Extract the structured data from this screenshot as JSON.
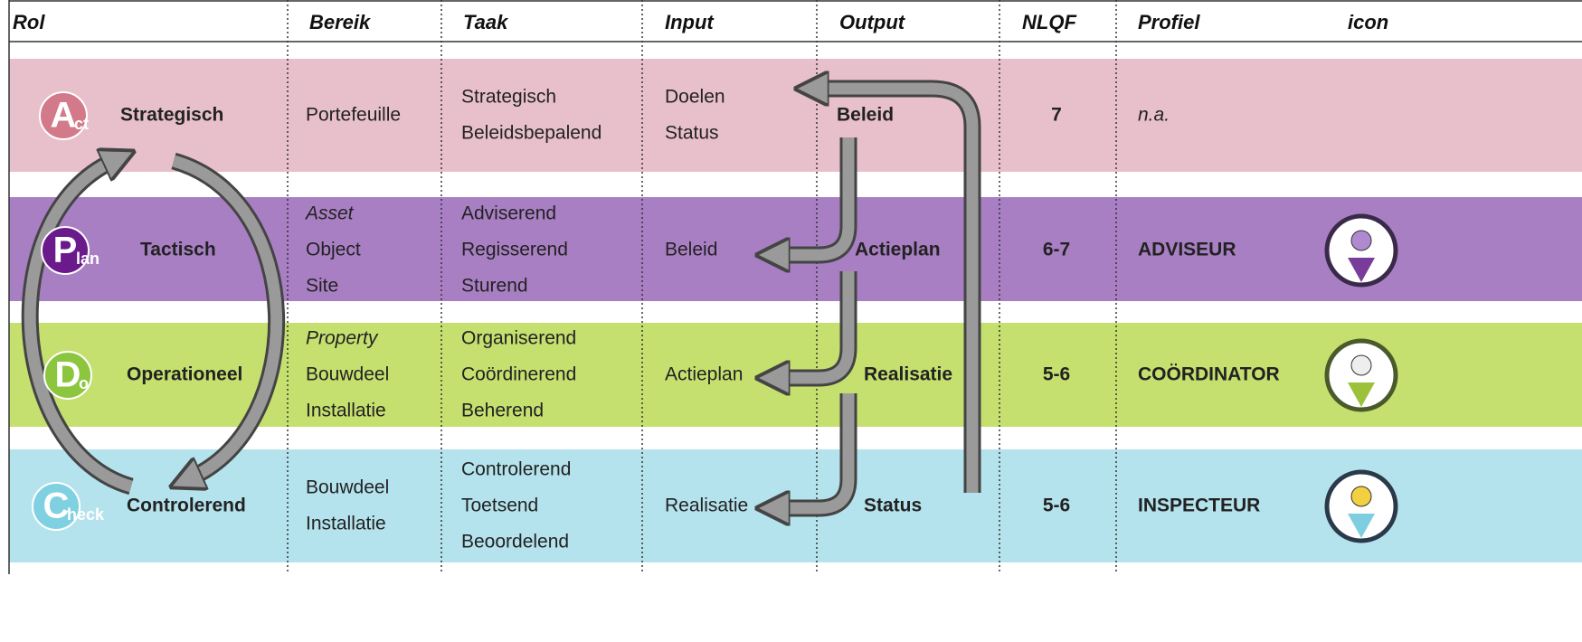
{
  "header": [
    "Rol",
    "Bereik",
    "Taak",
    "Input",
    "Output",
    "NLQF",
    "Profiel",
    "icon"
  ],
  "rows": [
    {
      "badge": "A",
      "badge_sub": "ct",
      "role": "Strategisch",
      "bereik": [
        "Portefeuille"
      ],
      "taak": [
        "Strategisch",
        "Beleidsbepalend"
      ],
      "input": [
        "Doelen",
        "Status"
      ],
      "output": "Beleid",
      "nlqf": "7",
      "profiel": "n.a."
    },
    {
      "badge": "P",
      "badge_sub": "lan",
      "role": "Tactisch",
      "bereik": [
        "Asset",
        "Object",
        "Site"
      ],
      "taak": [
        "Adviserend",
        "Regisserend",
        "Sturend"
      ],
      "input": [
        "Beleid"
      ],
      "output": "Actieplan",
      "nlqf": "6-7",
      "profiel": "ADVISEUR"
    },
    {
      "badge": "D",
      "badge_sub": "o",
      "role": "Operationeel",
      "bereik": [
        "Property",
        "Bouwdeel",
        "Installatie"
      ],
      "taak": [
        "Organiserend",
        "Coördinerend",
        "Beherend"
      ],
      "input": [
        "Actieplan"
      ],
      "output": "Realisatie",
      "nlqf": "5-6",
      "profiel": "COÖRDINATOR"
    },
    {
      "badge": "C",
      "badge_sub": "heck",
      "role": "Controlerend",
      "bereik": [
        "Bouwdeel",
        "Installatie"
      ],
      "taak": [
        "Controlerend",
        "Toetsend",
        "Beoordelend"
      ],
      "input": [
        "Realisatie"
      ],
      "output": "Status",
      "nlqf": "5-6",
      "profiel": "INSPECTEUR"
    }
  ]
}
